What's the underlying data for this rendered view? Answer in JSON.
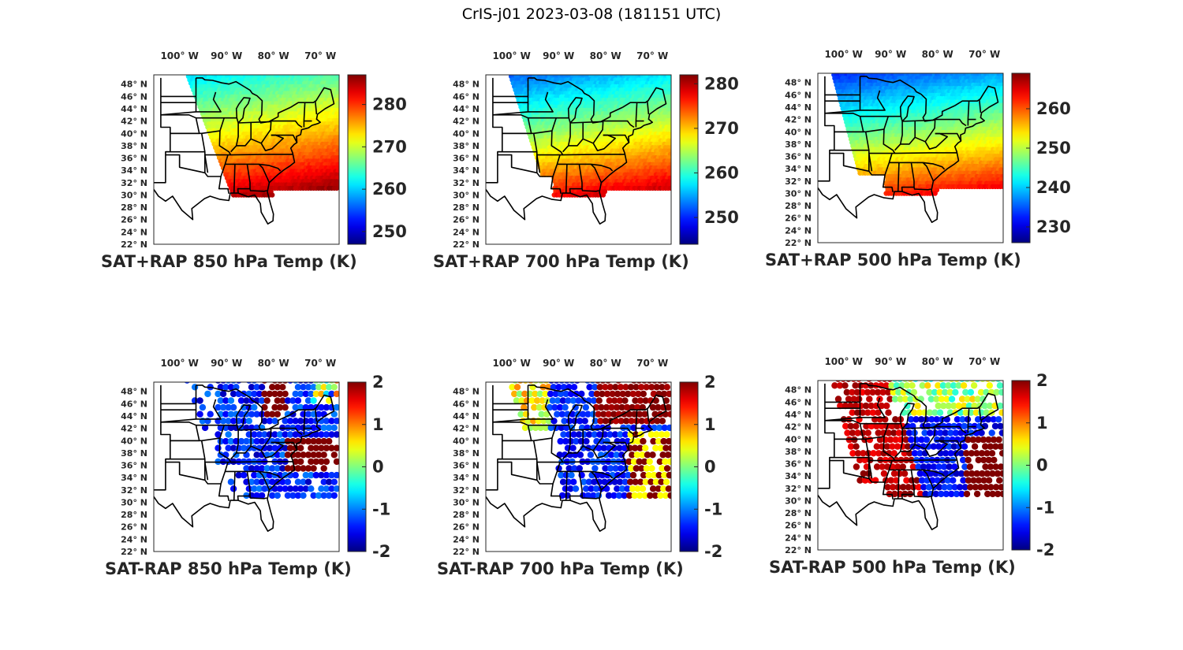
{
  "figure": {
    "title": "CrIS-j01 2023-03-08 (181151 UTC)"
  },
  "chart_data": [
    {
      "type": "heatmap",
      "title": "SAT+RAP 850 hPa Temp (K)",
      "kind": "scatter-map",
      "xlabel": "",
      "ylabel": "",
      "x_ticks": [
        "100° W",
        "90° W",
        "80° W",
        "70° W"
      ],
      "y_ticks": [
        "48° N",
        "46° N",
        "44° N",
        "42° N",
        "40° N",
        "38° N",
        "36° N",
        "34° N",
        "32° N",
        "30° N",
        "28° N",
        "26° N",
        "24° N",
        "22° N"
      ],
      "colorbar": {
        "ticks": [
          250,
          260,
          270,
          280
        ],
        "range": [
          247,
          287
        ],
        "colormap": "jet"
      },
      "field": {
        "description": "warm (~285 K) in southeast, cool (~262 K) in north",
        "south_value": 285,
        "north_value": 263
      }
    },
    {
      "type": "heatmap",
      "title": "SAT+RAP 700 hPa Temp (K)",
      "kind": "scatter-map",
      "xlabel": "",
      "ylabel": "",
      "x_ticks": [
        "100° W",
        "90° W",
        "80° W",
        "70° W"
      ],
      "y_ticks": [
        "48° N",
        "46° N",
        "44° N",
        "42° N",
        "40° N",
        "38° N",
        "36° N",
        "34° N",
        "32° N",
        "30° N",
        "28° N",
        "26° N",
        "24° N",
        "22° N"
      ],
      "colorbar": {
        "ticks": [
          250,
          260,
          270,
          280
        ],
        "range": [
          244,
          282
        ],
        "colormap": "jet"
      },
      "field": {
        "description": "warm (~278 K) in southeast, cool (~256 K) in north",
        "south_value": 278,
        "north_value": 255
      }
    },
    {
      "type": "heatmap",
      "title": "SAT+RAP 500 hPa Temp (K)",
      "kind": "scatter-map",
      "xlabel": "",
      "ylabel": "",
      "x_ticks": [
        "100° W",
        "90° W",
        "80° W",
        "70° W"
      ],
      "y_ticks": [
        "48° N",
        "46° N",
        "44° N",
        "42° N",
        "40° N",
        "38° N",
        "36° N",
        "34° N",
        "32° N",
        "30° N",
        "28° N",
        "26° N",
        "24° N",
        "22° N"
      ],
      "colorbar": {
        "ticks": [
          230,
          240,
          250,
          260
        ],
        "range": [
          226,
          269
        ],
        "colormap": "jet"
      },
      "field": {
        "description": "warm (~262 K) in southeast, cold (~238 K) in north",
        "south_value": 263,
        "north_value": 236
      }
    },
    {
      "type": "heatmap",
      "title": "SAT-RAP 850 hPa Temp (K)",
      "kind": "scatter-map",
      "xlabel": "",
      "ylabel": "",
      "x_ticks": [
        "100° W",
        "90° W",
        "80° W",
        "70° W"
      ],
      "y_ticks": [
        "48° N",
        "46° N",
        "44° N",
        "42° N",
        "40° N",
        "38° N",
        "36° N",
        "34° N",
        "32° N",
        "30° N",
        "28° N",
        "26° N",
        "24° N",
        "22° N"
      ],
      "colorbar": {
        "ticks": [
          -2,
          -1,
          0,
          1,
          2
        ],
        "range": [
          -2,
          2
        ],
        "colormap": "jet"
      },
      "field": {
        "description": "mostly negative (-2 K) differences, positive band near 80° W north and Atlantic coast",
        "south_value": -2,
        "north_value": -1.5
      }
    },
    {
      "type": "heatmap",
      "title": "SAT-RAP 700 hPa Temp (K)",
      "kind": "scatter-map",
      "xlabel": "",
      "ylabel": "",
      "x_ticks": [
        "100° W",
        "90° W",
        "80° W",
        "70° W"
      ],
      "y_ticks": [
        "48° N",
        "46° N",
        "44° N",
        "42° N",
        "40° N",
        "38° N",
        "36° N",
        "34° N",
        "32° N",
        "30° N",
        "28° N",
        "26° N",
        "24° N",
        "22° N"
      ],
      "colorbar": {
        "ticks": [
          -2,
          -1,
          0,
          1,
          2
        ],
        "range": [
          -2,
          2
        ],
        "colormap": "jet"
      },
      "field": {
        "description": "negative (-2 K) over land, positive (+2 K) streaks in northeast and offshore",
        "south_value": -2,
        "north_value": -1
      }
    },
    {
      "type": "heatmap",
      "title": "SAT-RAP 500 hPa Temp (K)",
      "kind": "scatter-map",
      "xlabel": "",
      "ylabel": "",
      "x_ticks": [
        "100° W",
        "90° W",
        "80° W",
        "70° W"
      ],
      "y_ticks": [
        "48° N",
        "46° N",
        "44° N",
        "42° N",
        "40° N",
        "38° N",
        "36° N",
        "34° N",
        "32° N",
        "30° N",
        "28° N",
        "26° N",
        "24° N",
        "22° N"
      ],
      "colorbar": {
        "ticks": [
          -2,
          -1,
          0,
          1,
          2
        ],
        "range": [
          -2,
          2
        ],
        "colormap": "jet"
      },
      "field": {
        "description": "positive (+2 K) along western swath edge and offshore, negative over southeast",
        "south_value": -2,
        "north_value": 0.5
      }
    }
  ]
}
